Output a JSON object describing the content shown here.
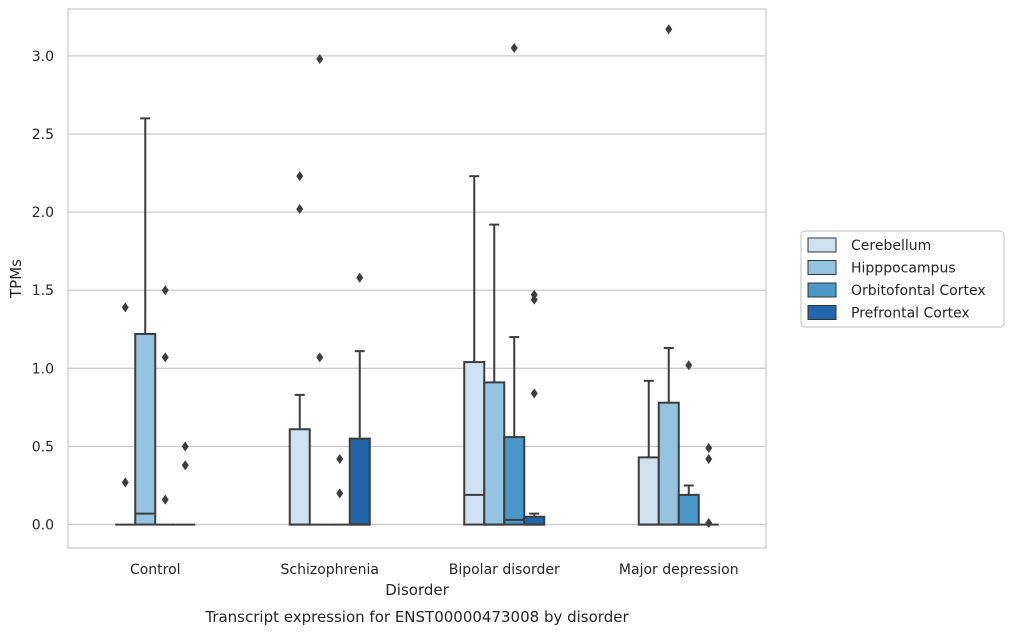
{
  "chart_data": {
    "type": "box",
    "caption": "Transcript expression for ENST00000473008 by disorder",
    "xlabel": "Disorder",
    "ylabel": "TPMs",
    "ylim": [
      -0.15,
      3.3
    ],
    "yticks": [
      "0.0",
      "0.5",
      "1.0",
      "1.5",
      "2.0",
      "2.5",
      "3.0"
    ],
    "grid": "horizontal",
    "legend_position": "right",
    "categories": [
      "Control",
      "Schizophrenia",
      "Bipolar disorder",
      "Major depression"
    ],
    "series": [
      {
        "name": "Cerebellum",
        "color": "#d0e1f2",
        "boxes": [
          {
            "category": "Control",
            "whislo": 0,
            "q1": 0,
            "med": 0,
            "q3": 0,
            "whishi": 0,
            "fliers": [
              0.27,
              1.39
            ]
          },
          {
            "category": "Schizophrenia",
            "whislo": 0,
            "q1": 0,
            "med": 0,
            "q3": 0.61,
            "whishi": 0.83,
            "fliers": [
              2.02,
              2.23
            ]
          },
          {
            "category": "Bipolar disorder",
            "whislo": 0,
            "q1": 0,
            "med": 0.19,
            "q3": 1.04,
            "whishi": 2.23,
            "fliers": []
          },
          {
            "category": "Major depression",
            "whislo": 0,
            "q1": 0,
            "med": 0,
            "q3": 0.43,
            "whishi": 0.92,
            "fliers": []
          }
        ]
      },
      {
        "name": "Hipppocampus",
        "color": "#94c4df",
        "boxes": [
          {
            "category": "Control",
            "whislo": 0,
            "q1": 0,
            "med": 0.07,
            "q3": 1.22,
            "whishi": 2.6,
            "fliers": []
          },
          {
            "category": "Schizophrenia",
            "whislo": 0,
            "q1": 0,
            "med": 0,
            "q3": 0,
            "whishi": 0,
            "fliers": [
              1.07,
              2.98
            ]
          },
          {
            "category": "Bipolar disorder",
            "whislo": 0,
            "q1": 0,
            "med": 0,
            "q3": 0.91,
            "whishi": 1.92,
            "fliers": []
          },
          {
            "category": "Major depression",
            "whislo": 0,
            "q1": 0,
            "med": 0,
            "q3": 0.78,
            "whishi": 1.13,
            "fliers": [
              3.17
            ]
          }
        ]
      },
      {
        "name": "Orbitofontal Cortex",
        "color": "#4a98c9",
        "boxes": [
          {
            "category": "Control",
            "whislo": 0,
            "q1": 0,
            "med": 0,
            "q3": 0,
            "whishi": 0,
            "fliers": [
              0.16,
              1.07,
              1.5
            ]
          },
          {
            "category": "Schizophrenia",
            "whislo": 0,
            "q1": 0,
            "med": 0,
            "q3": 0,
            "whishi": 0,
            "fliers": [
              0.2,
              0.42
            ]
          },
          {
            "category": "Bipolar disorder",
            "whislo": 0,
            "q1": 0,
            "med": 0.03,
            "q3": 0.56,
            "whishi": 1.2,
            "fliers": [
              3.05
            ]
          },
          {
            "category": "Major depression",
            "whislo": 0,
            "q1": 0,
            "med": 0,
            "q3": 0.19,
            "whishi": 0.25,
            "fliers": [
              1.02
            ]
          }
        ]
      },
      {
        "name": "Prefrontal Cortex",
        "color": "#2166ac",
        "boxes": [
          {
            "category": "Control",
            "whislo": 0,
            "q1": 0,
            "med": 0,
            "q3": 0,
            "whishi": 0,
            "fliers": [
              0.38,
              0.5
            ]
          },
          {
            "category": "Schizophrenia",
            "whislo": 0,
            "q1": 0,
            "med": 0,
            "q3": 0.55,
            "whishi": 1.11,
            "fliers": [
              1.58
            ]
          },
          {
            "category": "Bipolar disorder",
            "whislo": 0,
            "q1": 0,
            "med": 0,
            "q3": 0.05,
            "whishi": 0.07,
            "fliers": [
              0.84,
              1.44,
              1.47
            ]
          },
          {
            "category": "Major depression",
            "whislo": 0,
            "q1": 0,
            "med": 0,
            "q3": 0,
            "whishi": 0,
            "fliers": [
              0.01,
              0.42,
              0.49
            ]
          }
        ]
      }
    ]
  }
}
